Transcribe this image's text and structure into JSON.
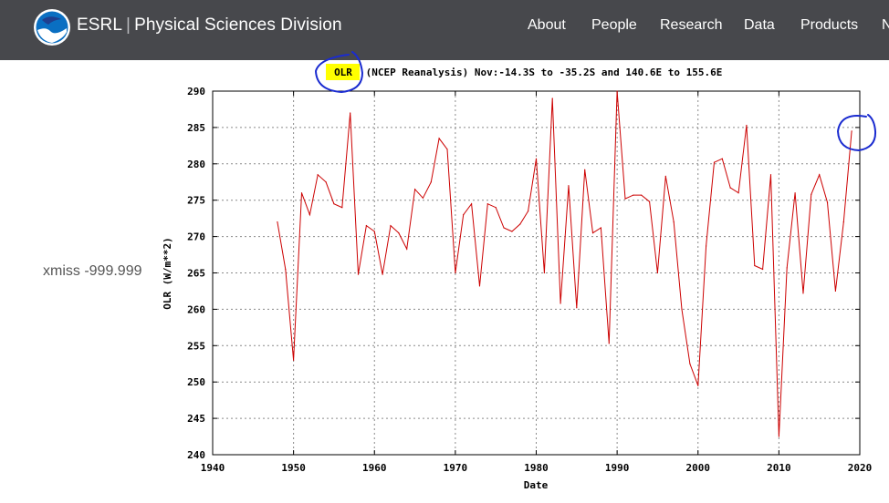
{
  "header": {
    "brand_primary": "ESRL",
    "brand_separator": "|",
    "brand_secondary": "Physical Sciences Division",
    "logo_icon": "noaa-logo-icon",
    "nav": [
      "About",
      "People",
      "Research",
      "Data",
      "Products",
      "N"
    ]
  },
  "xmiss_label": "xmiss -999.999",
  "colors": {
    "header_bg": "#47484c",
    "series_line": "#cc0000",
    "highlight": "#ffff00",
    "annotation_ink": "#1a2bd0"
  },
  "chart_data": {
    "type": "line",
    "title_highlight": "OLR",
    "title_rest": " (NCEP Reanalysis) Nov:-14.3S to -35.2S and 140.6E to 155.6E",
    "xlabel": "Date",
    "ylabel": "OLR (W/m**2)",
    "xlim": [
      1940,
      2020
    ],
    "ylim": [
      240,
      290
    ],
    "xticks": [
      "1940",
      "1950",
      "1960",
      "1970",
      "1980",
      "1990",
      "2000",
      "2010",
      "2020"
    ],
    "yticks": [
      "240",
      "245",
      "250",
      "255",
      "260",
      "265",
      "270",
      "275",
      "280",
      "285",
      "290"
    ],
    "grid": true,
    "series": [
      {
        "x": [
          1948,
          1949,
          1950,
          1951,
          1952,
          1953,
          1954,
          1955,
          1956,
          1957,
          1958,
          1959,
          1960,
          1961,
          1962,
          1963,
          1964,
          1965,
          1966,
          1967,
          1968,
          1969,
          1970,
          1971,
          1972,
          1973,
          1974,
          1975,
          1976,
          1977,
          1978,
          1979,
          1980,
          1981,
          1982,
          1983,
          1984,
          1985,
          1986,
          1987,
          1988,
          1989,
          1990,
          1991,
          1992,
          1993,
          1994,
          1995,
          1996,
          1997,
          1998,
          1999,
          2000,
          2001,
          2002,
          2003,
          2004,
          2005,
          2006,
          2007,
          2008,
          2009,
          2010,
          2011,
          2012,
          2013,
          2014,
          2015,
          2016,
          2017,
          2018,
          2019
        ],
        "y": [
          272.0,
          265.5,
          253.0,
          276.0,
          273.0,
          278.5,
          277.5,
          274.5,
          274.0,
          287.0,
          264.8,
          271.5,
          270.7,
          264.8,
          271.5,
          270.5,
          268.3,
          276.5,
          275.3,
          277.5,
          283.5,
          282.0,
          265.0,
          273.0,
          274.5,
          263.2,
          274.5,
          274.0,
          271.2,
          270.7,
          271.7,
          273.5,
          280.7,
          265.0,
          289.0,
          260.8,
          277.0,
          260.2,
          279.2,
          270.5,
          271.2,
          255.3,
          290.0,
          275.2,
          275.7,
          275.7,
          274.8,
          265.0,
          278.3,
          272.0,
          260.0,
          252.5,
          249.5,
          268.7,
          280.2,
          280.7,
          276.7,
          276.0,
          285.3,
          266.0,
          265.5,
          278.5,
          242.5,
          265.7,
          276.0,
          262.2,
          275.8,
          278.5,
          274.7,
          262.5,
          272.0,
          284.5
        ]
      }
    ]
  }
}
